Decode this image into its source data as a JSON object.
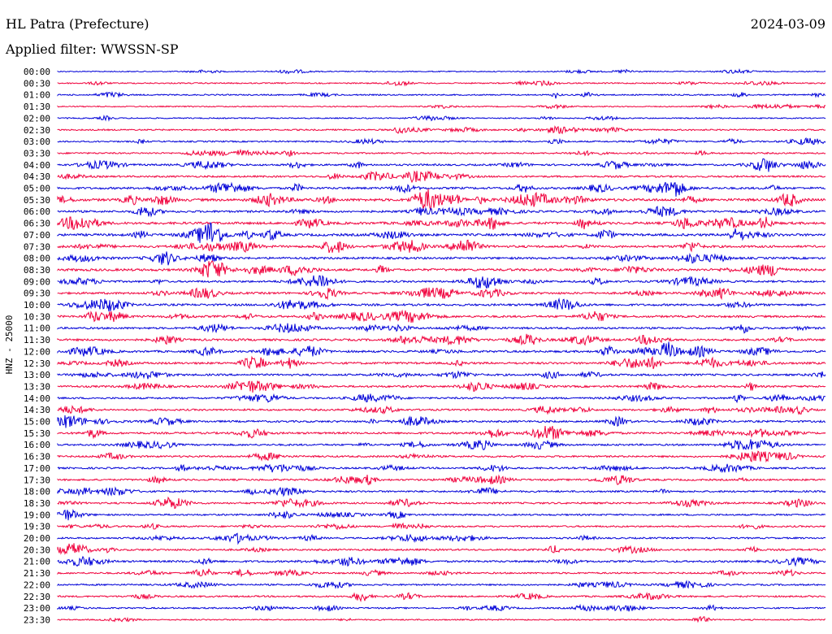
{
  "header": {
    "title": "HL Patra (Prefecture)",
    "date": "2024-03-09",
    "filter": "Applied filter: WWSSN-SP"
  },
  "chart_data": {
    "type": "line",
    "title": "HL Patra (Prefecture)",
    "date": "2024-03-09",
    "filter": "Applied filter: WWSSN-SP",
    "ylabel": "HNZ - 25000",
    "xlabel": "",
    "colors": {
      "even": "#0000d8",
      "odd": "#f0003c"
    },
    "rows": [
      "00:00",
      "00:30",
      "01:00",
      "01:30",
      "02:00",
      "02:30",
      "03:00",
      "03:30",
      "04:00",
      "04:30",
      "05:00",
      "05:30",
      "06:00",
      "06:30",
      "07:00",
      "07:30",
      "08:00",
      "08:30",
      "09:00",
      "09:30",
      "10:00",
      "10:30",
      "11:00",
      "11:30",
      "12:00",
      "12:30",
      "13:00",
      "13:30",
      "14:00",
      "14:30",
      "15:00",
      "15:30",
      "16:00",
      "16:30",
      "17:00",
      "17:30",
      "18:00",
      "18:30",
      "19:00",
      "19:30",
      "20:00",
      "20:30",
      "21:00",
      "21:30",
      "22:00",
      "22:30",
      "23:00",
      "23:30"
    ],
    "activity": [
      0.2,
      0.5,
      0.6,
      0.3,
      0.4,
      0.8,
      0.8,
      0.9,
      1.2,
      1.2,
      1.6,
      2.2,
      1.6,
      2.0,
      2.0,
      1.8,
      1.6,
      2.0,
      1.4,
      1.6,
      1.6,
      1.6,
      1.4,
      1.6,
      1.6,
      1.6,
      1.4,
      1.4,
      1.2,
      1.2,
      1.4,
      1.4,
      1.2,
      1.2,
      1.2,
      1.2,
      1.2,
      1.2,
      1.0,
      1.0,
      1.0,
      1.2,
      1.4,
      1.0,
      1.0,
      1.0,
      0.8,
      0.5
    ]
  }
}
